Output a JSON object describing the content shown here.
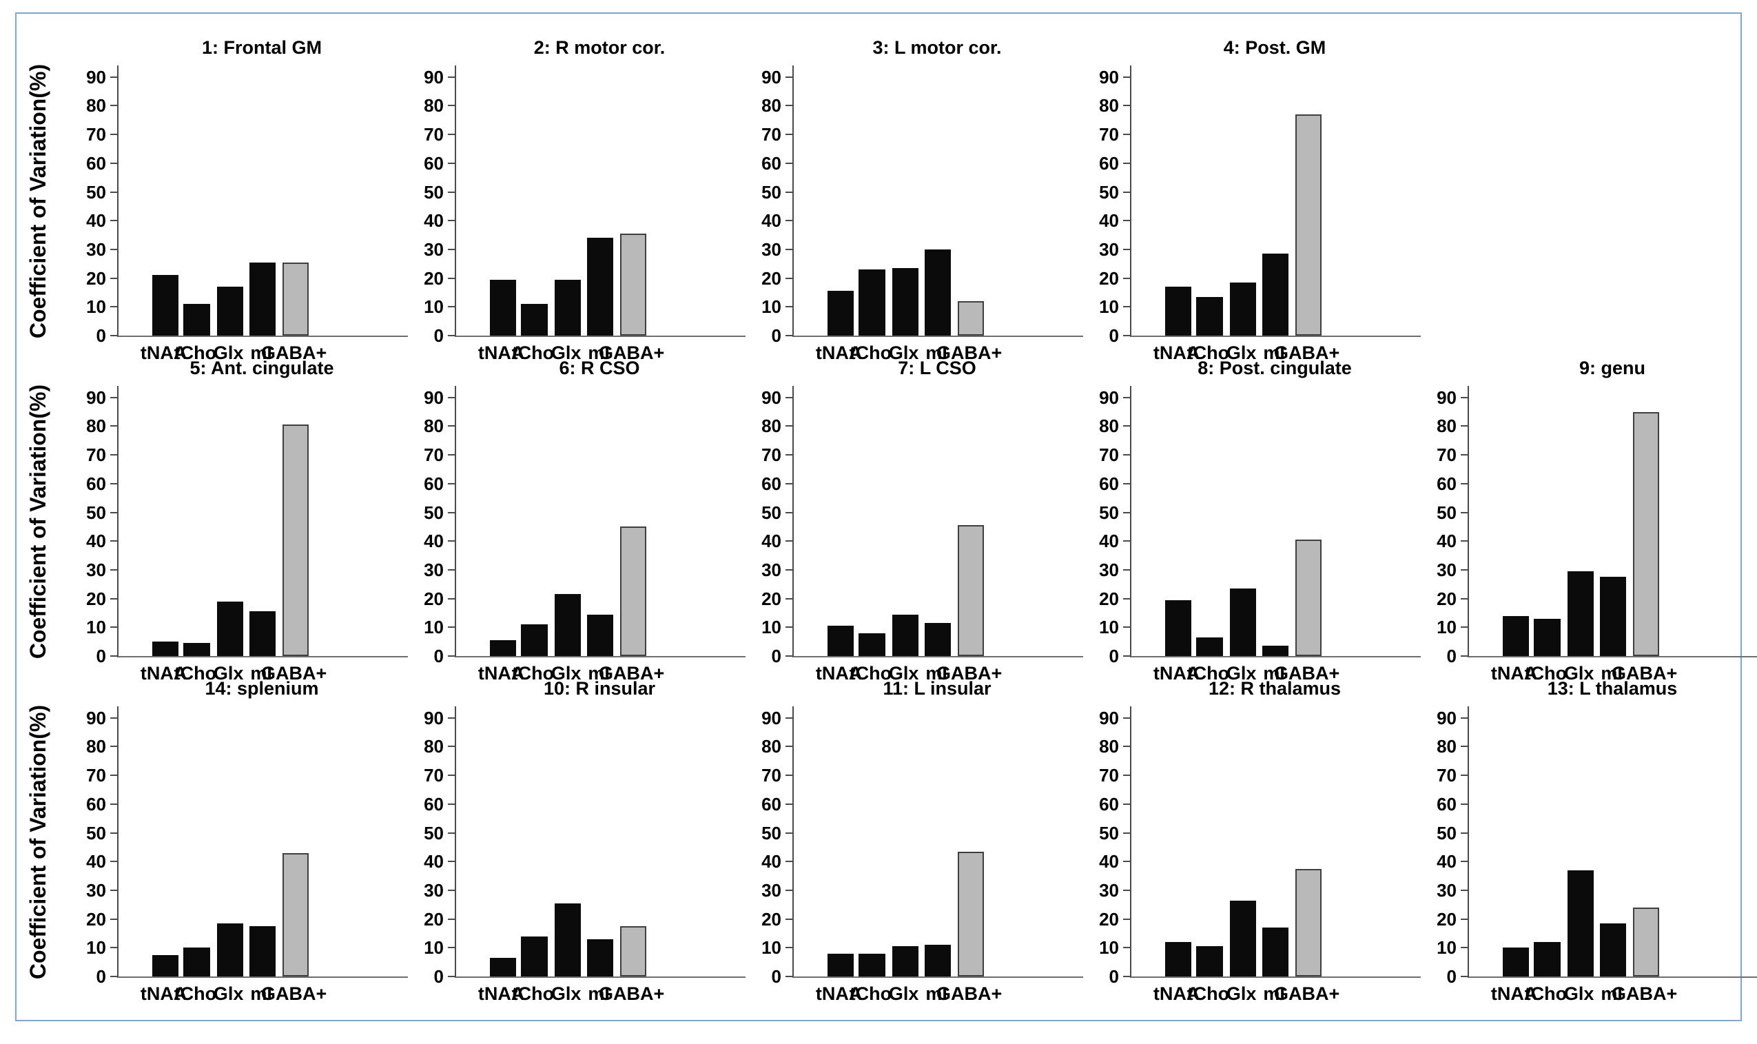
{
  "figure": {
    "y_axis_label": "Coefficient of Variation(%)",
    "categories": [
      "tNAA",
      "tCho",
      "Glx",
      "mI",
      "GABA+"
    ],
    "y_ticks": [
      0,
      10,
      20,
      30,
      40,
      50,
      60,
      70,
      80,
      90
    ],
    "ylim": [
      0,
      94
    ],
    "grid": "off",
    "legend": "none",
    "colors": {
      "metabolite_bar": "#0b0b0b",
      "gaba_bar_fill": "#b9b9b9",
      "gaba_bar_border": "#3f3f3f",
      "axis": "#4a4a4a",
      "frame_border": "#7aa8d9"
    }
  },
  "chart_data": [
    {
      "type": "bar",
      "title": "1: Frontal GM",
      "row": 0,
      "col": 0,
      "categories": [
        "tNAA",
        "tCho",
        "Glx",
        "mI",
        "GABA+"
      ],
      "values": [
        21,
        11,
        17,
        25.5,
        25.5
      ]
    },
    {
      "type": "bar",
      "title": "2: R motor cor.",
      "row": 0,
      "col": 1,
      "categories": [
        "tNAA",
        "tCho",
        "Glx",
        "mI",
        "GABA+"
      ],
      "values": [
        19.5,
        11,
        19.5,
        34,
        35.5
      ]
    },
    {
      "type": "bar",
      "title": "3: L motor cor.",
      "row": 0,
      "col": 2,
      "categories": [
        "tNAA",
        "tCho",
        "Glx",
        "mI",
        "GABA+"
      ],
      "values": [
        15.5,
        23,
        23.5,
        30,
        12
      ]
    },
    {
      "type": "bar",
      "title": "4: Post. GM",
      "row": 0,
      "col": 3,
      "categories": [
        "tNAA",
        "tCho",
        "Glx",
        "mI",
        "GABA+"
      ],
      "values": [
        17,
        13.5,
        18.5,
        28.5,
        77
      ]
    },
    {
      "type": "bar",
      "title": "5: Ant. cingulate",
      "row": 1,
      "col": 0,
      "categories": [
        "tNAA",
        "tCho",
        "Glx",
        "mI",
        "GABA+"
      ],
      "values": [
        5,
        4.5,
        19,
        15.5,
        80.5
      ]
    },
    {
      "type": "bar",
      "title": "6: R CSO",
      "row": 1,
      "col": 1,
      "categories": [
        "tNAA",
        "tCho",
        "Glx",
        "mI",
        "GABA+"
      ],
      "values": [
        5.5,
        11,
        21.5,
        14.5,
        45
      ]
    },
    {
      "type": "bar",
      "title": "7: L CSO",
      "row": 1,
      "col": 2,
      "categories": [
        "tNAA",
        "tCho",
        "Glx",
        "mI",
        "GABA+"
      ],
      "values": [
        10.5,
        8,
        14.5,
        11.5,
        45.5
      ]
    },
    {
      "type": "bar",
      "title": "8: Post. cingulate",
      "row": 1,
      "col": 3,
      "categories": [
        "tNAA",
        "tCho",
        "Glx",
        "mI",
        "GABA+"
      ],
      "values": [
        19.5,
        6.5,
        23.5,
        3.5,
        40.5
      ]
    },
    {
      "type": "bar",
      "title": "9: genu",
      "row": 1,
      "col": 4,
      "categories": [
        "tNAA",
        "tCho",
        "Glx",
        "mI",
        "GABA+"
      ],
      "values": [
        14,
        13,
        29.5,
        27.5,
        85
      ]
    },
    {
      "type": "bar",
      "title": "14: splenium",
      "row": 2,
      "col": 0,
      "categories": [
        "tNAA",
        "tCho",
        "Glx",
        "mI",
        "GABA+"
      ],
      "values": [
        7.5,
        10,
        18.5,
        17.5,
        43
      ]
    },
    {
      "type": "bar",
      "title": "10: R insular",
      "row": 2,
      "col": 1,
      "categories": [
        "tNAA",
        "tCho",
        "Glx",
        "mI",
        "GABA+"
      ],
      "values": [
        6.5,
        14,
        25.5,
        13,
        17.5
      ]
    },
    {
      "type": "bar",
      "title": "11: L insular",
      "row": 2,
      "col": 2,
      "categories": [
        "tNAA",
        "tCho",
        "Glx",
        "mI",
        "GABA+"
      ],
      "values": [
        8,
        8,
        10.5,
        11,
        43.5
      ]
    },
    {
      "type": "bar",
      "title": "12: R thalamus",
      "row": 2,
      "col": 3,
      "categories": [
        "tNAA",
        "tCho",
        "Glx",
        "mI",
        "GABA+"
      ],
      "values": [
        12,
        10.5,
        26.5,
        17,
        37.5
      ]
    },
    {
      "type": "bar",
      "title": "13: L thalamus",
      "row": 2,
      "col": 4,
      "categories": [
        "tNAA",
        "tCho",
        "Glx",
        "mI",
        "GABA+"
      ],
      "values": [
        10,
        12,
        37,
        18.5,
        24
      ]
    }
  ]
}
